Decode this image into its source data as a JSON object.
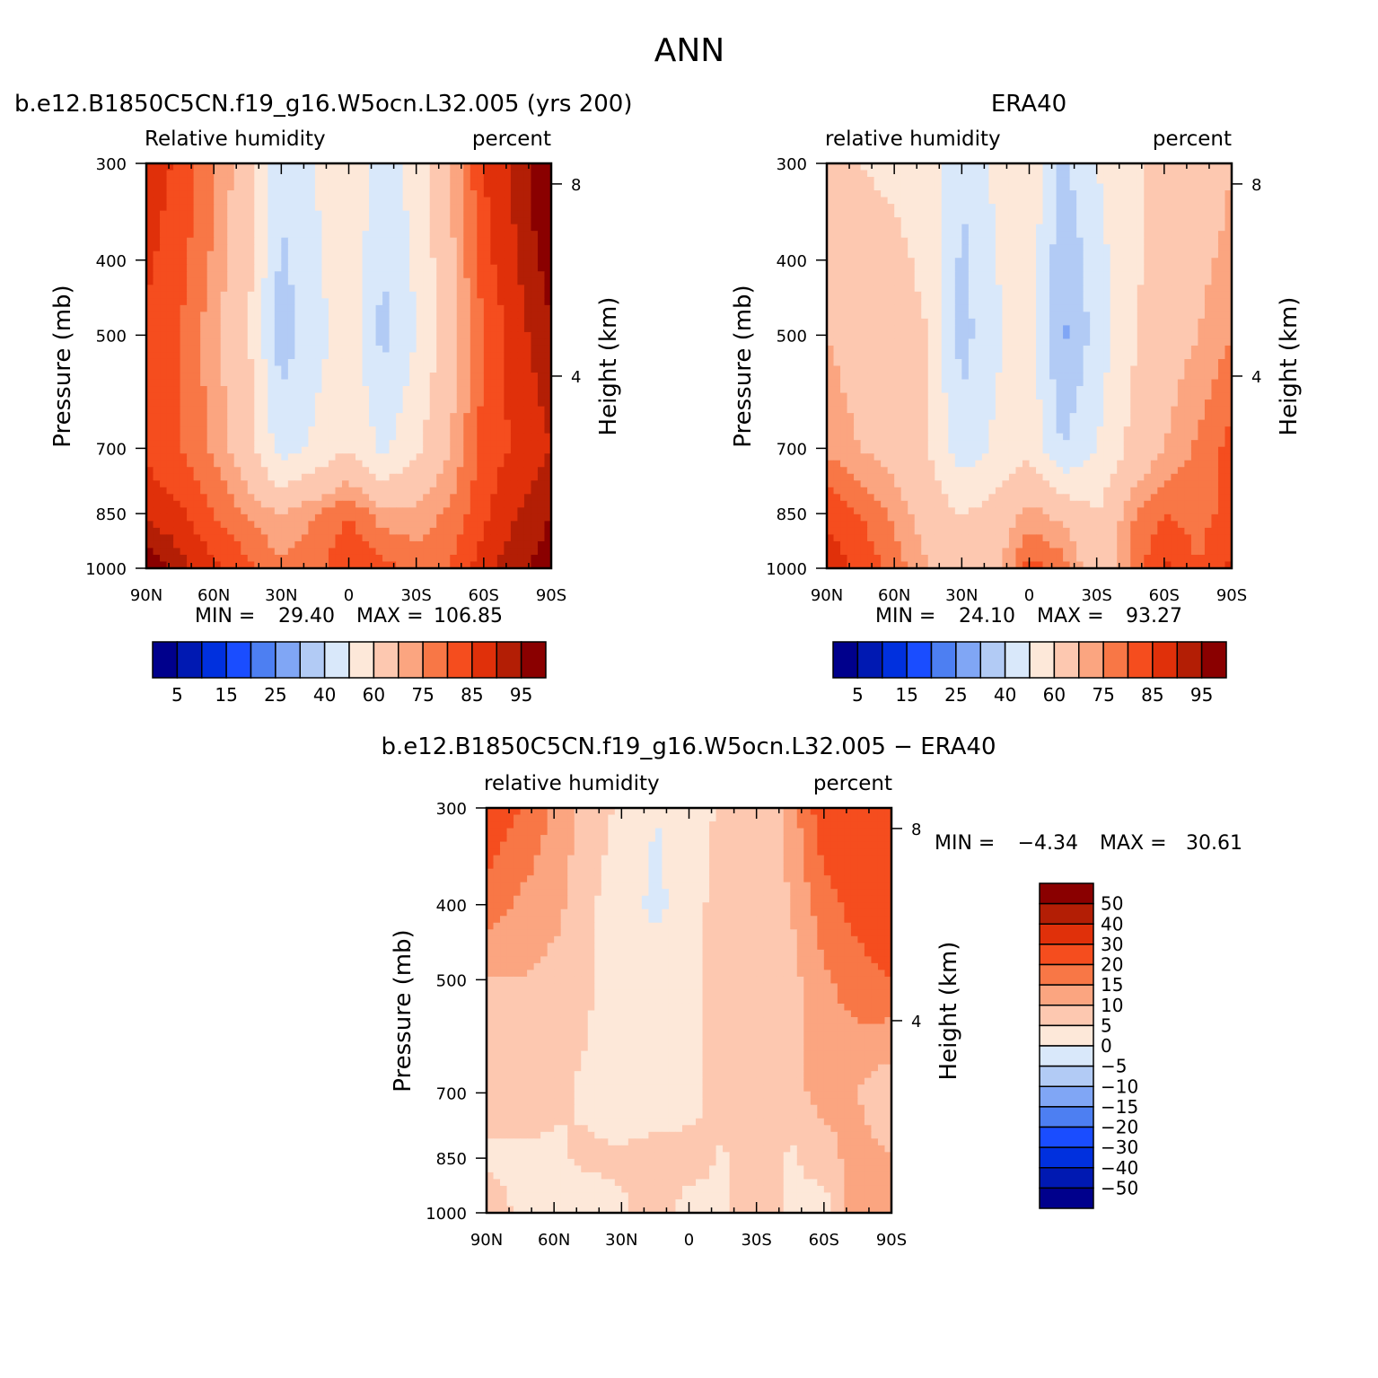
{
  "title": "ANN",
  "chart_data": [
    {
      "type": "heatmap",
      "title": "b.e12.B1850C5CN.f19_g16.W5ocn.L32.005 (yrs 200)",
      "left_label": "Relative humidity",
      "right_label": "percent",
      "ylabel": "Pressure (mb)",
      "y2label": "Height (km)",
      "x_ticks": [
        "90N",
        "60N",
        "30N",
        "0",
        "30S",
        "60S",
        "90S"
      ],
      "y_ticks": [
        "300",
        "400",
        "500",
        "700",
        "850",
        "1000"
      ],
      "y2_ticks": [
        "8",
        "4"
      ],
      "min_label": "MIN =",
      "min_value": "29.40",
      "max_label": "MAX =",
      "max_value": "106.85",
      "colorbar": {
        "orientation": "horizontal",
        "labels": [
          "5",
          "15",
          "25",
          "40",
          "60",
          "75",
          "85",
          "95"
        ],
        "colors": [
          "#00008c",
          "#0019b2",
          "#0030de",
          "#1a4dff",
          "#4d7ff2",
          "#80a6f5",
          "#b2cbf5",
          "#d9e8fa",
          "#fde8d9",
          "#fdc8b0",
          "#fba580",
          "#f87746",
          "#f54d1e",
          "#e0300a",
          "#b31e05",
          "#8a0000"
        ]
      },
      "latitude": [
        90,
        75,
        60,
        45,
        30,
        15,
        0,
        -15,
        -30,
        -45,
        -60,
        -75,
        -90
      ],
      "pressure": [
        300,
        400,
        500,
        700,
        850,
        1000
      ],
      "values": [
        [
          88,
          84,
          76,
          65,
          42,
          50,
          60,
          44,
          55,
          70,
          85,
          92,
          102
        ],
        [
          86,
          82,
          74,
          63,
          38,
          48,
          58,
          40,
          52,
          68,
          83,
          90,
          98
        ],
        [
          84,
          80,
          72,
          62,
          35,
          46,
          56,
          37,
          50,
          66,
          80,
          88,
          94
        ],
        [
          84,
          80,
          74,
          65,
          45,
          52,
          60,
          48,
          58,
          70,
          82,
          86,
          90
        ],
        [
          88,
          86,
          80,
          74,
          70,
          75,
          80,
          72,
          72,
          76,
          84,
          90,
          95
        ],
        [
          100,
          92,
          86,
          82,
          76,
          78,
          85,
          82,
          78,
          80,
          88,
          94,
          98
        ]
      ]
    },
    {
      "type": "heatmap",
      "title": "ERA40",
      "left_label": "relative humidity",
      "right_label": "percent",
      "ylabel": "Pressure (mb)",
      "y2label": "Height (km)",
      "x_ticks": [
        "90N",
        "60N",
        "30N",
        "0",
        "30S",
        "60S",
        "90S"
      ],
      "y_ticks": [
        "300",
        "400",
        "500",
        "700",
        "850",
        "1000"
      ],
      "y2_ticks": [
        "8",
        "4"
      ],
      "min_label": "MIN =",
      "min_value": "24.10",
      "max_label": "MAX =",
      "max_value": "93.27",
      "colorbar": {
        "orientation": "horizontal",
        "labels": [
          "5",
          "15",
          "25",
          "40",
          "60",
          "75",
          "85",
          "95"
        ],
        "colors": [
          "#00008c",
          "#0019b2",
          "#0030de",
          "#1a4dff",
          "#4d7ff2",
          "#80a6f5",
          "#b2cbf5",
          "#d9e8fa",
          "#fde8d9",
          "#fdc8b0",
          "#fba580",
          "#f87746",
          "#f54d1e",
          "#e0300a",
          "#b31e05",
          "#8a0000"
        ]
      },
      "latitude": [
        90,
        75,
        60,
        45,
        30,
        15,
        0,
        -15,
        -30,
        -45,
        -60,
        -75,
        -90
      ],
      "pressure": [
        300,
        400,
        500,
        700,
        850,
        1000
      ],
      "values": [
        [
          62,
          60,
          58,
          55,
          40,
          52,
          58,
          38,
          50,
          58,
          62,
          64,
          70
        ],
        [
          68,
          64,
          62,
          58,
          38,
          50,
          56,
          32,
          46,
          58,
          64,
          68,
          72
        ],
        [
          70,
          66,
          64,
          60,
          36,
          48,
          55,
          28,
          44,
          58,
          66,
          70,
          75
        ],
        [
          74,
          70,
          66,
          60,
          44,
          52,
          58,
          40,
          50,
          62,
          70,
          76,
          82
        ],
        [
          84,
          80,
          74,
          66,
          60,
          64,
          72,
          68,
          60,
          74,
          80,
          78,
          82
        ],
        [
          88,
          84,
          78,
          70,
          62,
          68,
          82,
          78,
          64,
          76,
          86,
          80,
          86
        ]
      ]
    },
    {
      "type": "heatmap",
      "title": "b.e12.B1850C5CN.f19_g16.W5ocn.L32.005 − ERA40",
      "left_label": "relative humidity",
      "right_label": "percent",
      "ylabel": "Pressure (mb)",
      "y2label": "Height (km)",
      "x_ticks": [
        "90N",
        "60N",
        "30N",
        "0",
        "30S",
        "60S",
        "90S"
      ],
      "y_ticks": [
        "300",
        "400",
        "500",
        "700",
        "850",
        "1000"
      ],
      "y2_ticks": [
        "8",
        "4"
      ],
      "min_label": "MIN =",
      "min_value": "−4.34",
      "max_label": "MAX =",
      "max_value": "30.61",
      "colorbar": {
        "orientation": "vertical",
        "labels": [
          "50",
          "40",
          "30",
          "20",
          "15",
          "10",
          "5",
          "0",
          "−5",
          "−10",
          "−15",
          "−20",
          "−30",
          "−40",
          "−50"
        ],
        "colors": [
          "#8a0000",
          "#b31e05",
          "#e0300a",
          "#f54d1e",
          "#f87746",
          "#fba580",
          "#fdc8b0",
          "#fde8d9",
          "#d9e8fa",
          "#b2cbf5",
          "#80a6f5",
          "#4d7ff2",
          "#1a4dff",
          "#0030de",
          "#0019b2",
          "#00008c"
        ]
      },
      "latitude": [
        90,
        75,
        60,
        45,
        30,
        15,
        0,
        -15,
        -30,
        -45,
        -60,
        -75,
        -90
      ],
      "pressure": [
        300,
        400,
        500,
        700,
        850,
        1000
      ],
      "values": [
        [
          24,
          20,
          14,
          8,
          4,
          0,
          2,
          6,
          5,
          12,
          24,
          26,
          30
        ],
        [
          18,
          14,
          12,
          6,
          2,
          -1,
          2,
          8,
          6,
          10,
          18,
          22,
          24
        ],
        [
          10,
          10,
          8,
          6,
          1,
          2,
          2,
          10,
          6,
          8,
          14,
          18,
          20
        ],
        [
          8,
          8,
          6,
          4,
          1,
          0,
          2,
          8,
          8,
          8,
          12,
          10,
          6
        ],
        [
          4,
          4,
          4,
          6,
          6,
          8,
          8,
          4,
          10,
          4,
          8,
          12,
          10
        ],
        [
          8,
          4,
          4,
          2,
          4,
          8,
          2,
          4,
          8,
          4,
          2,
          14,
          12
        ]
      ]
    }
  ]
}
